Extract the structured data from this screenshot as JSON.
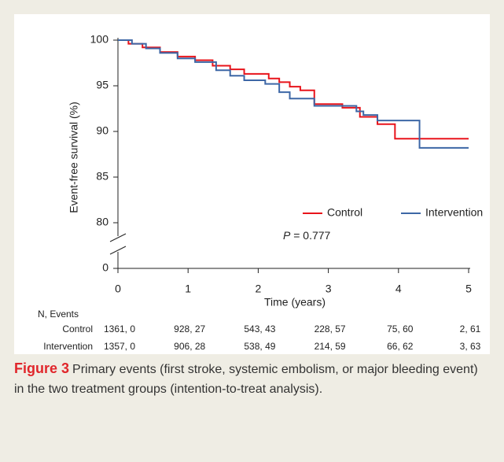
{
  "chart_data": {
    "type": "step",
    "y_label": "Event-free survival (%)",
    "x_label": "Time (years)",
    "xlim": [
      0,
      5
    ],
    "xticks": [
      0,
      1,
      2,
      3,
      4,
      5
    ],
    "ylim": [
      0,
      100
    ],
    "y_break": [
      0,
      80
    ],
    "yticks": [
      0,
      80,
      85,
      90,
      95,
      100
    ],
    "legend": "lower-right",
    "series": [
      {
        "name": "Control",
        "color": "#e8141b",
        "x": [
          0,
          0.15,
          0.15,
          0.35,
          0.35,
          0.6,
          0.6,
          0.85,
          0.85,
          1.1,
          1.1,
          1.35,
          1.35,
          1.6,
          1.6,
          1.8,
          1.8,
          2.15,
          2.15,
          2.3,
          2.3,
          2.45,
          2.45,
          2.6,
          2.6,
          2.8,
          2.8,
          3.2,
          3.2,
          3.45,
          3.45,
          3.7,
          3.7,
          3.95,
          3.95,
          5.0
        ],
        "values": [
          100,
          100,
          99.6,
          99.6,
          99.2,
          99.2,
          98.7,
          98.7,
          98.2,
          98.2,
          97.8,
          97.8,
          97.2,
          97.2,
          96.8,
          96.8,
          96.3,
          96.3,
          95.8,
          95.8,
          95.4,
          95.4,
          94.9,
          94.9,
          94.5,
          94.5,
          93.0,
          93.0,
          92.6,
          92.6,
          91.6,
          91.6,
          90.8,
          90.8,
          89.2,
          89.2
        ]
      },
      {
        "name": "Intervention",
        "color": "#3d67a6",
        "x": [
          0,
          0.2,
          0.2,
          0.4,
          0.4,
          0.6,
          0.6,
          0.85,
          0.85,
          1.1,
          1.1,
          1.4,
          1.4,
          1.6,
          1.6,
          1.8,
          1.8,
          2.1,
          2.1,
          2.3,
          2.3,
          2.45,
          2.45,
          2.8,
          2.8,
          3.4,
          3.4,
          3.5,
          3.5,
          3.7,
          3.7,
          4.3,
          4.3,
          5.0
        ],
        "values": [
          100,
          100,
          99.6,
          99.6,
          99.1,
          99.1,
          98.6,
          98.6,
          98.0,
          98.0,
          97.6,
          97.6,
          96.7,
          96.7,
          96.1,
          96.1,
          95.6,
          95.6,
          95.2,
          95.2,
          94.3,
          94.3,
          93.6,
          93.6,
          92.8,
          92.8,
          92.2,
          92.2,
          91.8,
          91.8,
          91.2,
          91.2,
          88.2,
          88.2
        ]
      }
    ],
    "p_value": {
      "symbol": "P",
      "text": "= 0.777"
    },
    "risk_table": {
      "title": "N, Events",
      "rows": [
        {
          "label": "Control",
          "cells": [
            "1361, 0",
            "928, 27",
            "543, 43",
            "228, 57",
            "75, 60",
            "2, 61"
          ]
        },
        {
          "label": "Intervention",
          "cells": [
            "1357, 0",
            "906, 28",
            "538, 49",
            "214, 59",
            "66, 62",
            "3, 63"
          ]
        }
      ]
    }
  },
  "caption": {
    "label": "Figure 3",
    "text": "Primary events (first stroke, systemic embolism, or major bleeding event) in the two treatment groups (intention-to-treat analysis)."
  }
}
